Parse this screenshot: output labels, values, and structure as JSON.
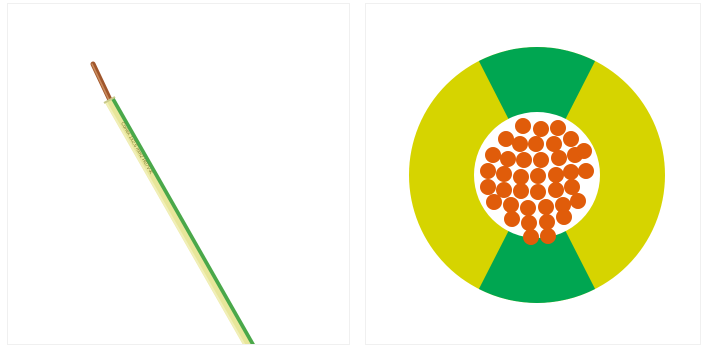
{
  "images": [
    {
      "subject": "single-core-wire",
      "insulation_color": "#e8e69a",
      "stripe_color": "#4aa84a",
      "conductor_color": "#b8703a",
      "print_text": "Conex 1x2,5 mm2 H07V-K"
    },
    {
      "subject": "cable-cross-section",
      "yellow_color": "#d6d400",
      "green_color": "#00a651",
      "core_color": "#e05c0a",
      "core_background": "#ffffff"
    }
  ]
}
